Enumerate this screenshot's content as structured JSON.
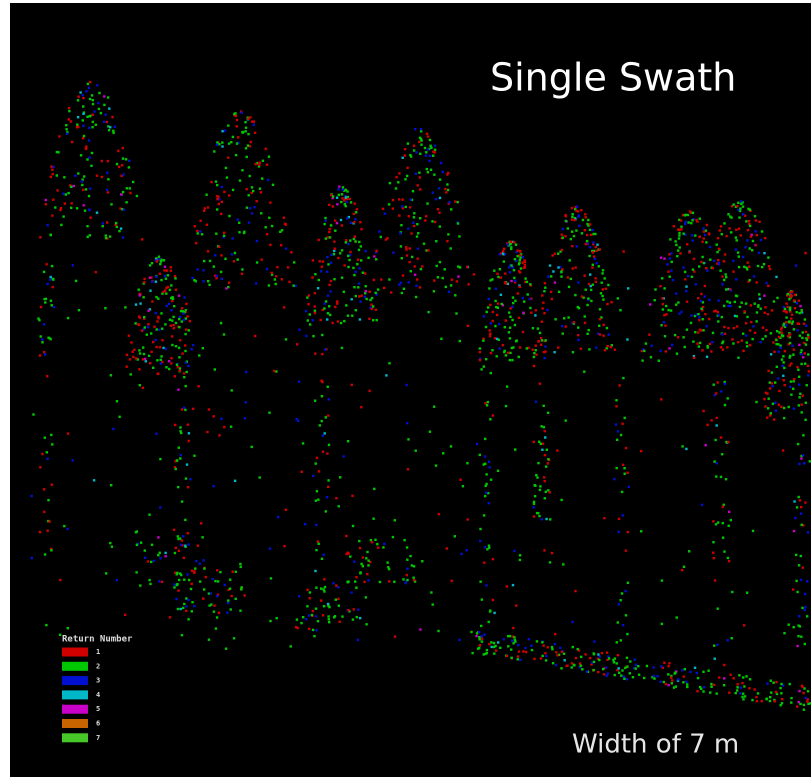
{
  "title": "Single Swath",
  "legend": {
    "title": "Return Number",
    "items": [
      {
        "label": "1",
        "color": "#d00000"
      },
      {
        "label": "2",
        "color": "#00c800"
      },
      {
        "label": "3",
        "color": "#0010d0"
      },
      {
        "label": "4",
        "color": "#00b8c8"
      },
      {
        "label": "5",
        "color": "#c800c8"
      },
      {
        "label": "6",
        "color": "#c86400"
      },
      {
        "label": "7",
        "color": "#48c828"
      }
    ]
  },
  "scale_label": "Width of 7 m"
}
